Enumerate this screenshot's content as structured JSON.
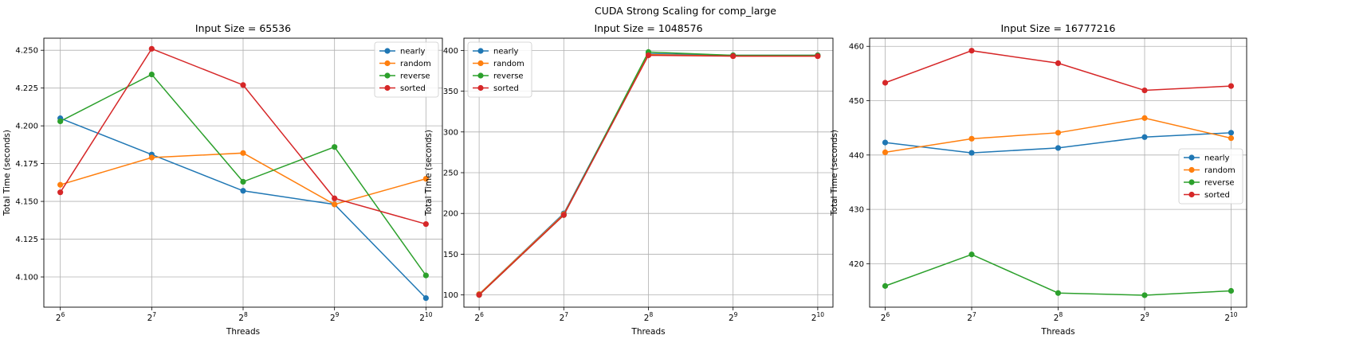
{
  "figure": {
    "title": "CUDA Strong Scaling for comp_large"
  },
  "colors": {
    "nearly": "#1f77b4",
    "random": "#ff7f0e",
    "reverse": "#2ca02c",
    "sorted": "#d62728"
  },
  "chart_data": [
    {
      "type": "line",
      "title": "Input Size = 65536",
      "xlabel": "Threads",
      "ylabel": "Total Time (seconds)",
      "x": [
        64,
        128,
        256,
        512,
        1024
      ],
      "x_tick_labels": [
        [
          "2",
          "6"
        ],
        [
          "2",
          "7"
        ],
        [
          "2",
          "8"
        ],
        [
          "2",
          "9"
        ],
        [
          "2",
          "10"
        ]
      ],
      "x_scale": "log2",
      "ylim": [
        4.08,
        4.258
      ],
      "yticks": [
        4.1,
        4.125,
        4.15,
        4.175,
        4.2,
        4.225,
        4.25
      ],
      "ytick_labels": [
        "4.100",
        "4.125",
        "4.150",
        "4.175",
        "4.200",
        "4.225",
        "4.250"
      ],
      "grid": true,
      "legend": "upper right",
      "series": [
        {
          "name": "nearly",
          "values": [
            4.205,
            4.181,
            4.157,
            4.148,
            4.086
          ]
        },
        {
          "name": "random",
          "values": [
            4.161,
            4.179,
            4.182,
            4.148,
            4.165
          ]
        },
        {
          "name": "reverse",
          "values": [
            4.203,
            4.234,
            4.163,
            4.186,
            4.101
          ]
        },
        {
          "name": "sorted",
          "values": [
            4.156,
            4.251,
            4.227,
            4.152,
            4.135
          ]
        }
      ]
    },
    {
      "type": "line",
      "title": "Input Size = 1048576",
      "xlabel": "Threads",
      "ylabel": "Total Time (seconds)",
      "x": [
        64,
        128,
        256,
        512,
        1024
      ],
      "x_tick_labels": [
        [
          "2",
          "6"
        ],
        [
          "2",
          "7"
        ],
        [
          "2",
          "8"
        ],
        [
          "2",
          "9"
        ],
        [
          "2",
          "10"
        ]
      ],
      "x_scale": "log2",
      "ylim": [
        85,
        415
      ],
      "yticks": [
        100,
        150,
        200,
        250,
        300,
        350,
        400
      ],
      "ytick_labels": [
        "100",
        "150",
        "200",
        "250",
        "300",
        "350",
        "400"
      ],
      "grid": true,
      "legend": "upper left",
      "series": [
        {
          "name": "nearly",
          "values": [
            101,
            200,
            396,
            394,
            394
          ]
        },
        {
          "name": "random",
          "values": [
            101,
            199,
            395,
            393,
            393
          ]
        },
        {
          "name": "reverse",
          "values": [
            100,
            198,
            398,
            394,
            394
          ]
        },
        {
          "name": "sorted",
          "values": [
            100,
            198,
            394,
            393,
            393
          ]
        }
      ]
    },
    {
      "type": "line",
      "title": "Input Size = 16777216",
      "xlabel": "Threads",
      "ylabel": "Total Time (seconds)",
      "x": [
        64,
        128,
        256,
        512,
        1024
      ],
      "x_tick_labels": [
        [
          "2",
          "6"
        ],
        [
          "2",
          "7"
        ],
        [
          "2",
          "8"
        ],
        [
          "2",
          "9"
        ],
        [
          "2",
          "10"
        ]
      ],
      "x_scale": "log2",
      "ylim": [
        412,
        461.5
      ],
      "yticks": [
        420,
        430,
        440,
        450,
        460
      ],
      "ytick_labels": [
        "420",
        "430",
        "440",
        "450",
        "460"
      ],
      "grid": true,
      "legend": "center right",
      "series": [
        {
          "name": "nearly",
          "values": [
            442.3,
            440.4,
            441.3,
            443.3,
            444.1
          ]
        },
        {
          "name": "random",
          "values": [
            440.5,
            443.0,
            444.1,
            446.8,
            443.1
          ]
        },
        {
          "name": "reverse",
          "values": [
            415.9,
            421.7,
            414.6,
            414.2,
            415.0
          ]
        },
        {
          "name": "sorted",
          "values": [
            453.3,
            459.2,
            456.9,
            451.9,
            452.7
          ]
        }
      ]
    }
  ]
}
